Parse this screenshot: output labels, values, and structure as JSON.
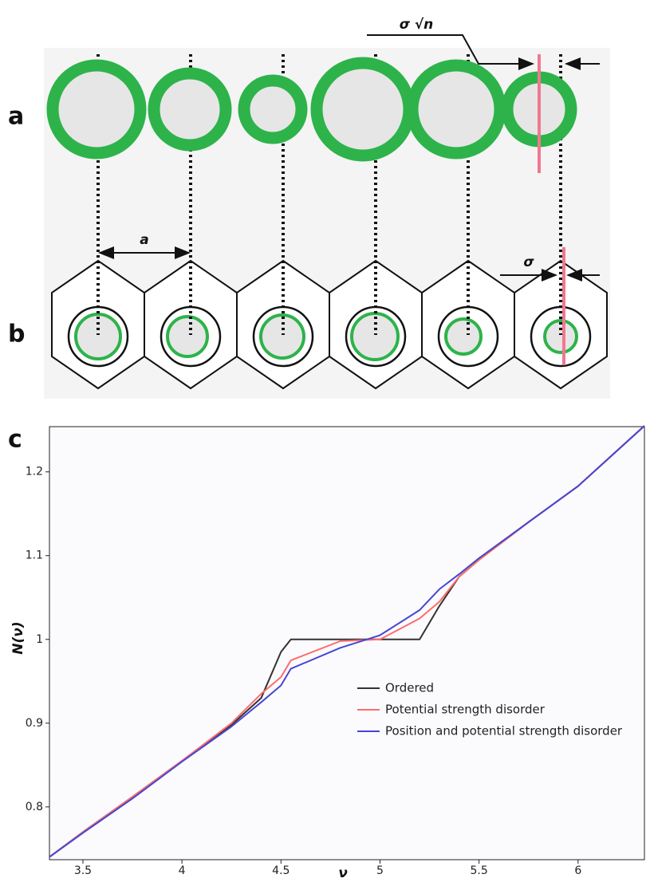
{
  "panels": {
    "a": "a",
    "b": "b",
    "c": "c"
  },
  "annotations": {
    "sigma_sqrt_n": "σ √n",
    "spacing": "a",
    "sigma": "σ"
  },
  "chart_data": {
    "type": "line",
    "x_label": "ν",
    "y_label": "N(ν)",
    "x": [
      3.33,
      3.5,
      3.75,
      4,
      4.25,
      4.4,
      4.5,
      4.55,
      4.8,
      5,
      5.2,
      5.3,
      5.4,
      5.5,
      5.75,
      6,
      6.335
    ],
    "series": [
      {
        "name": "Ordered",
        "color": "#333333",
        "values": [
          0.74,
          0.77,
          0.812,
          0.855,
          0.898,
          0.93,
          0.985,
          1.0,
          1.0,
          1.0,
          1.0,
          1.04,
          1.075,
          1.095,
          1.14,
          1.183,
          1.255
        ]
      },
      {
        "name": "Potential strength disorder",
        "color": "#ff6b6b",
        "values": [
          0.74,
          0.77,
          0.812,
          0.855,
          0.9,
          0.935,
          0.955,
          0.975,
          0.998,
          1.0,
          1.025,
          1.045,
          1.075,
          1.095,
          1.14,
          1.183,
          1.255
        ]
      },
      {
        "name": "Position and potential strength disorder",
        "color": "#4646d2",
        "values": [
          0.74,
          0.769,
          0.81,
          0.854,
          0.896,
          0.925,
          0.945,
          0.965,
          0.99,
          1.005,
          1.035,
          1.06,
          1.078,
          1.097,
          1.14,
          1.183,
          1.255
        ]
      }
    ],
    "xlim": [
      3.331,
      6.335
    ],
    "ylim": [
      0.737,
      1.254
    ],
    "xticks": [
      3.5,
      4,
      4.5,
      5,
      5.5,
      6
    ],
    "yticks": [
      0.8,
      0.9,
      1,
      1.1,
      1.2
    ]
  }
}
